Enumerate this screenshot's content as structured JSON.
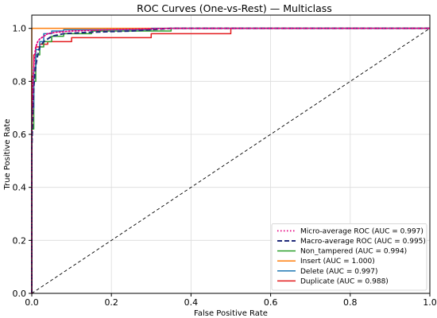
{
  "chart_data": {
    "type": "line",
    "title": "ROC Curves (One-vs-Rest) — Multiclass",
    "xlabel": "False Positive Rate",
    "ylabel": "True Positive Rate",
    "xlim": [
      0,
      1
    ],
    "ylim": [
      0,
      1.05
    ],
    "grid": true,
    "legend_position": "bottom-right",
    "xticks": [
      "0.0",
      "0.2",
      "0.4",
      "0.6",
      "0.8",
      "1.0"
    ],
    "yticks": [
      "0.0",
      "0.2",
      "0.4",
      "0.6",
      "0.8",
      "1.0"
    ],
    "series": [
      {
        "name": "Micro-average ROC (AUC = 0.997)",
        "color": "#e6007e",
        "style": "dotted",
        "x": [
          0,
          0.0,
          0.003,
          0.006,
          0.01,
          0.015,
          0.02,
          0.03,
          0.04,
          0.06,
          0.1,
          0.2,
          0.35,
          1.0
        ],
        "y": [
          0,
          0.6,
          0.8,
          0.88,
          0.93,
          0.95,
          0.96,
          0.97,
          0.98,
          0.985,
          0.99,
          0.995,
          1.0,
          1.0
        ]
      },
      {
        "name": "Macro-average ROC (AUC = 0.995)",
        "color": "#1f2a7a",
        "style": "dashed",
        "x": [
          0,
          0.0,
          0.005,
          0.01,
          0.015,
          0.02,
          0.03,
          0.05,
          0.08,
          0.14,
          0.25,
          0.35,
          1.0
        ],
        "y": [
          0,
          0.55,
          0.78,
          0.86,
          0.9,
          0.93,
          0.95,
          0.97,
          0.98,
          0.985,
          0.99,
          1.0,
          1.0
        ]
      },
      {
        "name": "Non_tampered (AUC = 0.994)",
        "color": "#2ca02c",
        "style": "solid",
        "x": [
          0,
          0.0,
          0.005,
          0.005,
          0.01,
          0.01,
          0.02,
          0.02,
          0.03,
          0.03,
          0.05,
          0.05,
          0.08,
          0.08,
          0.15,
          0.15,
          0.35,
          0.35,
          1.0
        ],
        "y": [
          0,
          0.62,
          0.62,
          0.8,
          0.8,
          0.9,
          0.9,
          0.93,
          0.93,
          0.95,
          0.95,
          0.97,
          0.97,
          0.98,
          0.98,
          0.99,
          0.99,
          1.0,
          1.0
        ]
      },
      {
        "name": "Insert (AUC = 1.000)",
        "color": "#ff7f0e",
        "style": "solid",
        "x": [
          0,
          0.0,
          0.0,
          1.0
        ],
        "y": [
          0,
          0.0,
          1.0,
          1.0
        ]
      },
      {
        "name": "Delete (AUC = 0.997)",
        "color": "#1f77b4",
        "style": "solid",
        "x": [
          0,
          0.0,
          0.005,
          0.005,
          0.01,
          0.01,
          0.02,
          0.02,
          0.03,
          0.03,
          0.05,
          0.05,
          0.08,
          0.08,
          0.3,
          0.3,
          1.0
        ],
        "y": [
          0,
          0.7,
          0.7,
          0.85,
          0.85,
          0.92,
          0.92,
          0.95,
          0.95,
          0.98,
          0.98,
          0.99,
          0.99,
          0.995,
          0.995,
          1.0,
          1.0
        ]
      },
      {
        "name": "Duplicate (AUC = 0.988)",
        "color": "#e31a1c",
        "style": "solid",
        "x": [
          0,
          0.0,
          0.005,
          0.005,
          0.01,
          0.01,
          0.02,
          0.02,
          0.04,
          0.04,
          0.1,
          0.1,
          0.3,
          0.3,
          0.5,
          0.5,
          1.0
        ],
        "y": [
          0,
          0.82,
          0.82,
          0.9,
          0.9,
          0.93,
          0.93,
          0.94,
          0.94,
          0.95,
          0.95,
          0.965,
          0.965,
          0.98,
          0.98,
          1.0,
          1.0
        ]
      },
      {
        "name": "",
        "color": "#000000",
        "style": "dashed-thin",
        "x": [
          0,
          1
        ],
        "y": [
          0,
          1
        ]
      }
    ]
  }
}
